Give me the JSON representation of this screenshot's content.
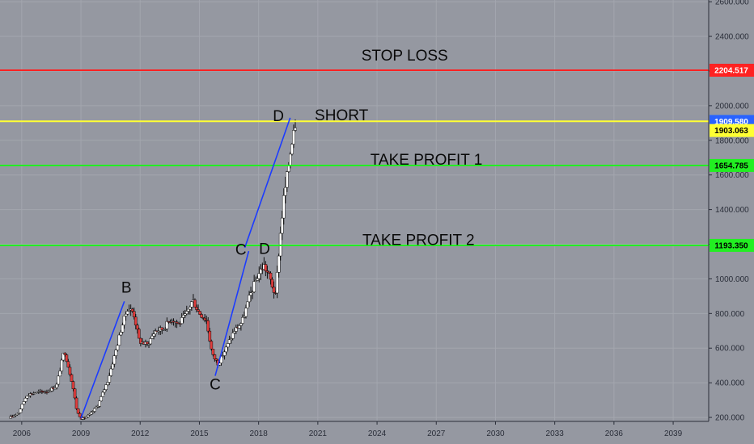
{
  "chart_data": {
    "type": "candlestick",
    "title": "",
    "xlabel": "",
    "ylabel": "",
    "xlim": [
      2004.9,
      2040.8
    ],
    "ylim": [
      177,
      2610
    ],
    "grid": true,
    "x_ticks": [
      {
        "label": "2006",
        "year": 2006.0
      },
      {
        "label": "2009",
        "year": 2009.0
      },
      {
        "label": "2012",
        "year": 2012.0
      },
      {
        "label": "2015",
        "year": 2015.0
      },
      {
        "label": "2018",
        "year": 2018.0
      },
      {
        "label": "2021",
        "year": 2021.0
      },
      {
        "label": "2024",
        "year": 2024.0
      },
      {
        "label": "2027",
        "year": 2027.0
      },
      {
        "label": "2030",
        "year": 2030.0
      },
      {
        "label": "2033",
        "year": 2033.0
      },
      {
        "label": "2036",
        "year": 2036.0
      },
      {
        "label": "2039",
        "year": 2039.0
      }
    ],
    "y_ticks": [
      {
        "label": "200.000",
        "value": 200
      },
      {
        "label": "400.000",
        "value": 400
      },
      {
        "label": "600.000",
        "value": 600
      },
      {
        "label": "800.000",
        "value": 800
      },
      {
        "label": "1000.000",
        "value": 1000
      },
      {
        "label": "1200.000",
        "value": 1200
      },
      {
        "label": "1400.000",
        "value": 1400
      },
      {
        "label": "1600.000",
        "value": 1600
      },
      {
        "label": "1800.000",
        "value": 1800
      },
      {
        "label": "2000.000",
        "value": 2000
      },
      {
        "label": "2200.000",
        "value": 2200
      },
      {
        "label": "2400.000",
        "value": 2400
      },
      {
        "label": "2600.000",
        "value": 2600
      }
    ],
    "price_path": [
      [
        2005.4,
        195
      ],
      [
        2005.9,
        230
      ],
      [
        2006.3,
        330
      ],
      [
        2006.8,
        345
      ],
      [
        2007.3,
        350
      ],
      [
        2007.8,
        380
      ],
      [
        2008.2,
        590
      ],
      [
        2008.6,
        400
      ],
      [
        2008.85,
        230
      ],
      [
        2009.1,
        190
      ],
      [
        2009.5,
        215
      ],
      [
        2009.9,
        270
      ],
      [
        2010.4,
        410
      ],
      [
        2010.8,
        580
      ],
      [
        2011.1,
        720
      ],
      [
        2011.4,
        830
      ],
      [
        2011.7,
        810
      ],
      [
        2012.0,
        640
      ],
      [
        2012.4,
        620
      ],
      [
        2012.8,
        700
      ],
      [
        2013.2,
        710
      ],
      [
        2013.6,
        770
      ],
      [
        2014.0,
        740
      ],
      [
        2014.4,
        800
      ],
      [
        2014.7,
        880
      ],
      [
        2015.0,
        810
      ],
      [
        2015.4,
        760
      ],
      [
        2015.7,
        560
      ],
      [
        2016.0,
        510
      ],
      [
        2016.4,
        600
      ],
      [
        2016.8,
        700
      ],
      [
        2017.2,
        750
      ],
      [
        2017.6,
        900
      ],
      [
        2018.0,
        1020
      ],
      [
        2018.3,
        1080
      ],
      [
        2018.6,
        1010
      ],
      [
        2018.9,
        900
      ],
      [
        2019.1,
        1200
      ],
      [
        2019.3,
        1450
      ],
      [
        2019.5,
        1600
      ],
      [
        2019.7,
        1780
      ],
      [
        2019.85,
        1909.58
      ]
    ],
    "trend_lines": [
      {
        "from": [
          2009.0,
          195
        ],
        "to": [
          2011.2,
          870
        ]
      },
      {
        "from": [
          2015.8,
          440
        ],
        "to": [
          2017.5,
          1160
        ]
      },
      {
        "from": [
          2017.3,
          1180
        ],
        "to": [
          2019.6,
          1930
        ]
      }
    ],
    "levels": [
      {
        "name": "STOP LOSS",
        "label": "2204.517",
        "value": 2204.517,
        "color": "#ff2222"
      },
      {
        "name": "SHORT",
        "label": "1909.580",
        "value": 1909.58,
        "color": "#ffff33"
      },
      {
        "name": "",
        "label": "1903.063",
        "value": 1903.063,
        "color": "#ffff33"
      },
      {
        "name": "TAKE PROFIT 1",
        "label": "1654.785",
        "value": 1654.785,
        "color": "#22ee22"
      },
      {
        "name": "TAKE PROFIT 2",
        "label": "1193.350",
        "value": 1193.35,
        "color": "#22ee22"
      }
    ],
    "annotations": [
      {
        "text": "STOP LOSS",
        "x": 2025.4,
        "y": 2260
      },
      {
        "text": "SHORT",
        "x": 2022.2,
        "y": 1915
      },
      {
        "text": "TAKE PROFIT 1",
        "x": 2026.5,
        "y": 1660
      },
      {
        "text": "TAKE PROFIT 2",
        "x": 2026.1,
        "y": 1195
      },
      {
        "text": "B",
        "x": 2011.3,
        "y": 920
      },
      {
        "text": "C",
        "x": 2015.8,
        "y": 360
      },
      {
        "text": "C",
        "x": 2017.1,
        "y": 1140
      },
      {
        "text": "D",
        "x": 2018.3,
        "y": 1145
      },
      {
        "text": "D",
        "x": 2019.0,
        "y": 1910
      }
    ]
  }
}
